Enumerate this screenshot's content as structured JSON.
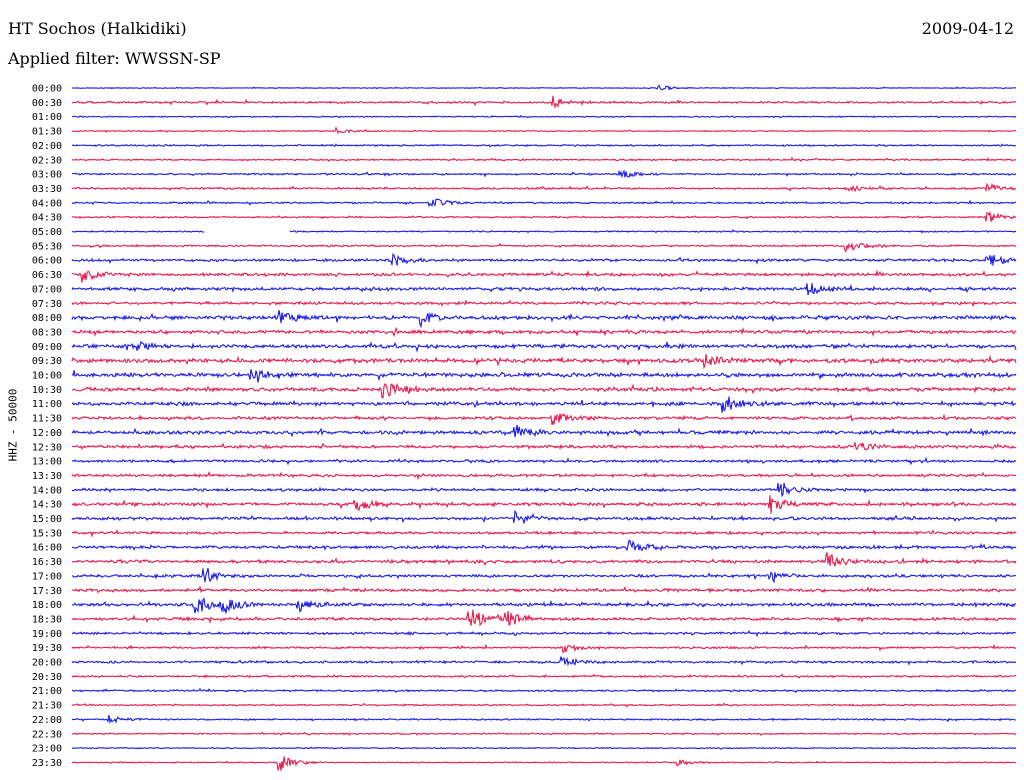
{
  "header": {
    "station": "HT Sochos (Halkidiki)",
    "date": "2009-04-12",
    "filter": "Applied filter: WWSSN-SP"
  },
  "chart_data": {
    "type": "line",
    "title": "HT Sochos (Halkidiki)",
    "subtitle": "Applied filter: WWSSN-SP",
    "ylabel": "HHZ - 50000",
    "xlabel": "",
    "grid": false,
    "colors": [
      "#1a1ae6",
      "#e61a4d"
    ],
    "time_labels": [
      "00:00",
      "00:30",
      "01:00",
      "01:30",
      "02:00",
      "02:30",
      "03:00",
      "03:30",
      "04:00",
      "04:30",
      "05:00",
      "05:30",
      "06:00",
      "06:30",
      "07:00",
      "07:30",
      "08:00",
      "08:30",
      "09:00",
      "09:30",
      "10:00",
      "10:30",
      "11:00",
      "11:30",
      "12:00",
      "12:30",
      "13:00",
      "13:30",
      "14:00",
      "14:30",
      "15:00",
      "15:30",
      "16:00",
      "16:30",
      "17:00",
      "17:30",
      "18:00",
      "18:30",
      "19:00",
      "19:30",
      "20:00",
      "20:30",
      "21:00",
      "21:30",
      "22:00",
      "22:30",
      "23:00",
      "23:30"
    ],
    "noise_level": [
      0.35,
      0.9,
      0.5,
      0.45,
      0.7,
      0.75,
      0.8,
      0.85,
      0.75,
      0.7,
      0.6,
      0.8,
      1.2,
      1.3,
      1.4,
      1.2,
      1.7,
      1.5,
      1.6,
      1.9,
      1.8,
      1.7,
      1.5,
      1.3,
      1.5,
      1.4,
      1.1,
      1.2,
      1.2,
      1.4,
      1.3,
      1.1,
      1.3,
      1.4,
      1.2,
      1.3,
      1.4,
      1.3,
      1.0,
      0.9,
      1.0,
      0.8,
      0.8,
      0.7,
      0.7,
      0.6,
      0.5,
      0.5
    ],
    "events": [
      {
        "row": 0,
        "t": 0.62,
        "amp": 3
      },
      {
        "row": 1,
        "t": 0.51,
        "amp": 6
      },
      {
        "row": 3,
        "t": 0.28,
        "amp": 3
      },
      {
        "row": 6,
        "t": 0.58,
        "amp": 5
      },
      {
        "row": 7,
        "t": 0.82,
        "amp": 4
      },
      {
        "row": 7,
        "t": 0.97,
        "amp": 4
      },
      {
        "row": 8,
        "t": 0.38,
        "amp": 6
      },
      {
        "row": 9,
        "t": 0.97,
        "amp": 6
      },
      {
        "row": 11,
        "t": 0.82,
        "amp": 6
      },
      {
        "row": 12,
        "t": 0.34,
        "amp": 7
      },
      {
        "row": 12,
        "t": 0.97,
        "amp": 7
      },
      {
        "row": 13,
        "t": 0.01,
        "amp": 9
      },
      {
        "row": 14,
        "t": 0.78,
        "amp": 7
      },
      {
        "row": 16,
        "t": 0.22,
        "amp": 6
      },
      {
        "row": 16,
        "t": 0.37,
        "amp": 8
      },
      {
        "row": 18,
        "t": 0.07,
        "amp": 6
      },
      {
        "row": 19,
        "t": 0.67,
        "amp": 6
      },
      {
        "row": 20,
        "t": 0.19,
        "amp": 7
      },
      {
        "row": 21,
        "t": 0.33,
        "amp": 10
      },
      {
        "row": 22,
        "t": 0.69,
        "amp": 10
      },
      {
        "row": 23,
        "t": 0.51,
        "amp": 6
      },
      {
        "row": 24,
        "t": 0.47,
        "amp": 8
      },
      {
        "row": 25,
        "t": 0.83,
        "amp": 5
      },
      {
        "row": 28,
        "t": 0.75,
        "amp": 7
      },
      {
        "row": 29,
        "t": 0.3,
        "amp": 8
      },
      {
        "row": 29,
        "t": 0.74,
        "amp": 9
      },
      {
        "row": 30,
        "t": 0.47,
        "amp": 7
      },
      {
        "row": 32,
        "t": 0.59,
        "amp": 8
      },
      {
        "row": 33,
        "t": 0.8,
        "amp": 9
      },
      {
        "row": 34,
        "t": 0.14,
        "amp": 7
      },
      {
        "row": 34,
        "t": 0.74,
        "amp": 6
      },
      {
        "row": 36,
        "t": 0.13,
        "amp": 12
      },
      {
        "row": 36,
        "t": 0.16,
        "amp": 9
      },
      {
        "row": 36,
        "t": 0.24,
        "amp": 8
      },
      {
        "row": 37,
        "t": 0.42,
        "amp": 12
      },
      {
        "row": 37,
        "t": 0.46,
        "amp": 10
      },
      {
        "row": 39,
        "t": 0.52,
        "amp": 5
      },
      {
        "row": 40,
        "t": 0.52,
        "amp": 6
      },
      {
        "row": 44,
        "t": 0.04,
        "amp": 4
      },
      {
        "row": 47,
        "t": 0.22,
        "amp": 9
      },
      {
        "row": 47,
        "t": 0.64,
        "amp": 4
      }
    ],
    "gaps": [
      {
        "row": 10,
        "from": 0.14,
        "to": 0.23
      }
    ]
  }
}
